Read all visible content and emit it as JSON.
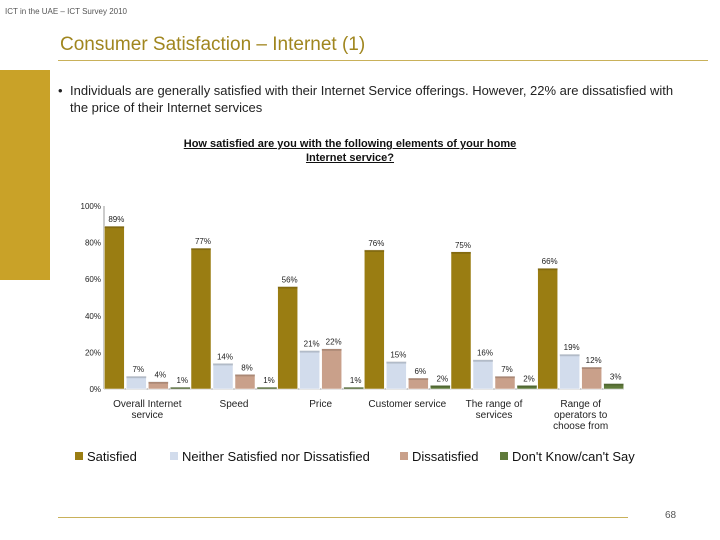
{
  "header": "ICT in the UAE – ICT Survey 2010",
  "title": "Consumer Satisfaction – Internet (1)",
  "bullet_marker": "•",
  "bullet": "Individuals are generally satisfied with their Internet Service offerings.  However, 22% are dissatisfied with the price of their Internet services",
  "page_number": "68",
  "chart_data": {
    "type": "bar",
    "title_line1": "How satisfied are you with the following elements of your home",
    "title_line2": "Internet service?",
    "ylim": [
      0,
      100
    ],
    "yticks": [
      "0%",
      "20%",
      "40%",
      "60%",
      "80%",
      "100%"
    ],
    "categories": [
      [
        "Overall Internet",
        "service"
      ],
      [
        "Speed"
      ],
      [
        "Price"
      ],
      [
        "Customer service"
      ],
      [
        "The range of",
        "services"
      ],
      [
        "Range of",
        "operators to",
        "choose from"
      ]
    ],
    "series": [
      {
        "name": "Satisfied",
        "color": "#9a7d12",
        "values": [
          89,
          77,
          56,
          76,
          75,
          66
        ]
      },
      {
        "name": "Neither Satisfied nor Dissatisfied",
        "color": "#d2dcec",
        "values": [
          7,
          14,
          21,
          15,
          16,
          19
        ]
      },
      {
        "name": "Dissatisfied",
        "color": "#c9a08a",
        "values": [
          4,
          8,
          22,
          6,
          7,
          12
        ]
      },
      {
        "name": "Don't Know/can't Say",
        "color": "#5f7a3a",
        "values": [
          1,
          1,
          1,
          2,
          2,
          3
        ]
      }
    ]
  }
}
